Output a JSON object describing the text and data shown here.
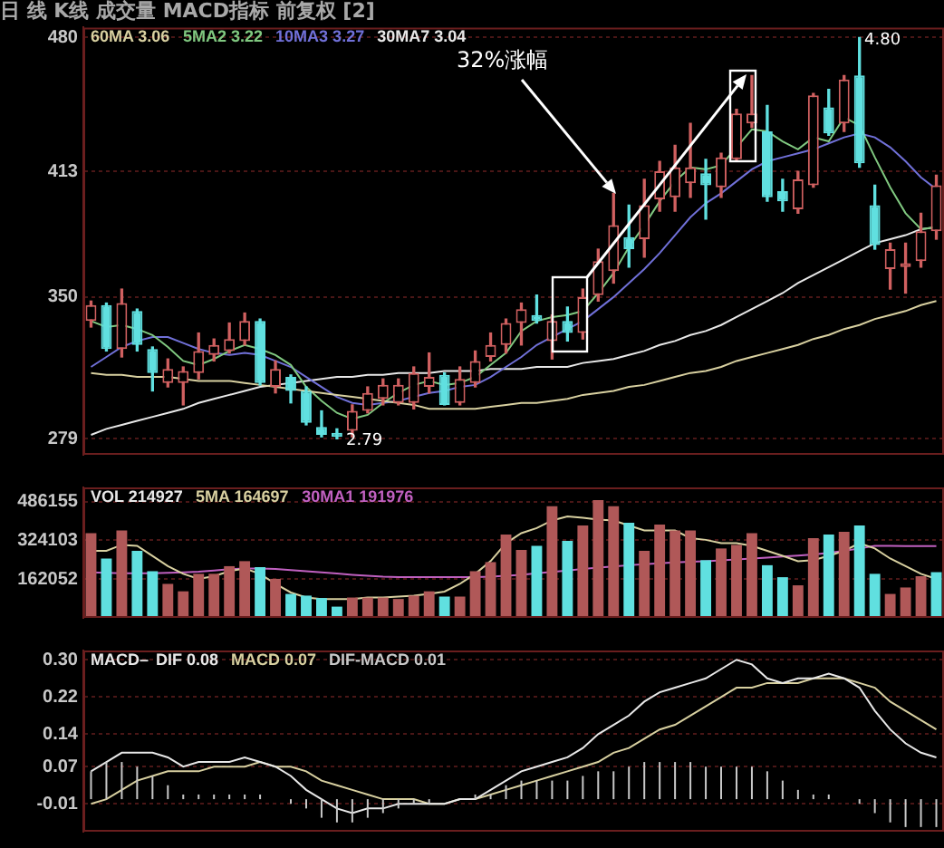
{
  "chart_data": [
    {
      "type": "candlestick",
      "title": "日 线 K线 成交量 MACD指标 前复权 [2]",
      "categories": [
        null,
        null,
        null,
        null,
        null,
        null,
        null,
        null,
        null,
        null,
        null,
        null,
        null,
        null,
        null,
        null,
        null,
        null,
        null,
        null,
        null,
        null,
        null,
        null,
        null,
        null,
        null,
        null,
        null,
        null,
        null,
        null,
        null,
        null,
        null,
        null,
        null,
        null,
        null,
        null,
        null,
        null,
        null,
        null,
        null,
        null,
        null,
        null,
        null,
        null,
        null,
        null,
        null,
        null,
        null,
        null
      ],
      "ohlc": [
        [
          338,
          348,
          335,
          346
        ],
        [
          346,
          347,
          323,
          324
        ],
        [
          324,
          354,
          320,
          347
        ],
        [
          343,
          344,
          323,
          326
        ],
        [
          324,
          325,
          303,
          312
        ],
        [
          307,
          319,
          305,
          314
        ],
        [
          307,
          315,
          296,
          313
        ],
        [
          312,
          332,
          309,
          323
        ],
        [
          321,
          329,
          318,
          326
        ],
        [
          323,
          337,
          322,
          329
        ],
        [
          328,
          342,
          326,
          338
        ],
        [
          338,
          339,
          306,
          307
        ],
        [
          305,
          318,
          302,
          314
        ],
        [
          310,
          311,
          297,
          303
        ],
        [
          303,
          305,
          286,
          287
        ],
        [
          285,
          293,
          280,
          281
        ],
        [
          282,
          284,
          279,
          280
        ],
        [
          283,
          296,
          280,
          293
        ],
        [
          293,
          305,
          292,
          302
        ],
        [
          299,
          309,
          296,
          306
        ],
        [
          297,
          309,
          296,
          306
        ],
        [
          297,
          315,
          294,
          312
        ],
        [
          305,
          322,
          302,
          310
        ],
        [
          311,
          312,
          296,
          296
        ],
        [
          297,
          315,
          296,
          309
        ],
        [
          307,
          323,
          305,
          318
        ],
        [
          320,
          332,
          318,
          326
        ],
        [
          326,
          339,
          322,
          337
        ],
        [
          337,
          347,
          326,
          344
        ],
        [
          341,
          351,
          337,
          338
        ],
        [
          328,
          341,
          319,
          338
        ],
        [
          338,
          345,
          328,
          332
        ],
        [
          332,
          354,
          329,
          350
        ],
        [
          351,
          374,
          348,
          368
        ],
        [
          363,
          402,
          357,
          386
        ],
        [
          380,
          396,
          365,
          374
        ],
        [
          379,
          409,
          370,
          396
        ],
        [
          399,
          418,
          393,
          413
        ],
        [
          400,
          426,
          393,
          415
        ],
        [
          407,
          437,
          400,
          415
        ],
        [
          412,
          419,
          389,
          406
        ],
        [
          405,
          422,
          400,
          420
        ],
        [
          419,
          444,
          418,
          442
        ],
        [
          437,
          461,
          435,
          442
        ],
        [
          433,
          446,
          398,
          400
        ],
        [
          403,
          409,
          393,
          398
        ],
        [
          394,
          413,
          392,
          409
        ],
        [
          406,
          452,
          405,
          451
        ],
        [
          445,
          454,
          431,
          432
        ],
        [
          437,
          461,
          433,
          459
        ],
        [
          461,
          480,
          415,
          417
        ],
        [
          396,
          406,
          374,
          376
        ],
        [
          364,
          377,
          354,
          374
        ],
        [
          365,
          377,
          352,
          367
        ],
        [
          368,
          392,
          365,
          383
        ],
        [
          383,
          411,
          379,
          406
        ]
      ],
      "colors": [
        "#d06060",
        "#60e0e0",
        "#d06060",
        "#60e0e0",
        "#60e0e0",
        "#d06060",
        "#d06060",
        "#d06060",
        "#d06060",
        "#d06060",
        "#d06060",
        "#60e0e0",
        "#d06060",
        "#60e0e0",
        "#60e0e0",
        "#60e0e0",
        "#60e0e0",
        "#d06060",
        "#d06060",
        "#d06060",
        "#d06060",
        "#d06060",
        "#d06060",
        "#60e0e0",
        "#d06060",
        "#d06060",
        "#d06060",
        "#d06060",
        "#d06060",
        "#60e0e0",
        "#d06060",
        "#60e0e0",
        "#d06060",
        "#d06060",
        "#d06060",
        "#60e0e0",
        "#d06060",
        "#d06060",
        "#d06060",
        "#d06060",
        "#60e0e0",
        "#d06060",
        "#d06060",
        "#d06060",
        "#60e0e0",
        "#60e0e0",
        "#d06060",
        "#d06060",
        "#60e0e0",
        "#d06060",
        "#60e0e0",
        "#60e0e0",
        "#d06060",
        "#d06060",
        "#d06060",
        "#d06060"
      ],
      "series": [
        {
          "name": "60MA 3.06",
          "type": "line",
          "color": "#d8d0a0",
          "values": [
            312,
            311,
            311,
            310,
            310,
            310,
            309,
            308,
            308,
            308,
            307,
            306,
            305,
            304,
            303,
            302,
            301,
            300,
            299,
            298,
            297,
            296,
            294,
            294,
            294,
            294,
            295,
            296,
            297,
            297,
            298,
            299,
            301,
            302,
            303,
            305,
            306,
            308,
            310,
            312,
            313,
            315,
            318,
            320,
            322,
            324,
            326,
            329,
            331,
            334,
            336,
            339,
            341,
            343,
            346,
            348
          ]
        },
        {
          "name": "5MA2 3.22",
          "type": "line",
          "color": "#80c880",
          "values": [
            338,
            335,
            336,
            334,
            331,
            325,
            318,
            316,
            319,
            323,
            326,
            324,
            321,
            316,
            305,
            298,
            292,
            289,
            291,
            297,
            302,
            306,
            308,
            306,
            307,
            310,
            316,
            322,
            333,
            338,
            340,
            341,
            343,
            352,
            362,
            375,
            386,
            398,
            408,
            415,
            414,
            416,
            425,
            434,
            433,
            428,
            424,
            430,
            428,
            440,
            436,
            420,
            405,
            392,
            384,
            385
          ]
        },
        {
          "name": "10MA3 3.27",
          "type": "line",
          "color": "#7070d8",
          "values": [
            315,
            320,
            325,
            328,
            330,
            330,
            327,
            324,
            322,
            321,
            322,
            321,
            318,
            315,
            310,
            305,
            300,
            297,
            296,
            297,
            298,
            300,
            302,
            303,
            305,
            306,
            310,
            315,
            320,
            326,
            330,
            334,
            338,
            344,
            350,
            357,
            364,
            372,
            381,
            390,
            397,
            402,
            408,
            414,
            418,
            420,
            422,
            424,
            427,
            430,
            432,
            430,
            425,
            418,
            410,
            404
          ]
        },
        {
          "name": "30MA7 3.04",
          "type": "line",
          "color": "#e8e8e8",
          "values": [
            281,
            284,
            286,
            288,
            290,
            292,
            294,
            297,
            299,
            301,
            303,
            305,
            306,
            307,
            308,
            309,
            310,
            310,
            311,
            311,
            312,
            312,
            312,
            313,
            313,
            313,
            314,
            314,
            314,
            315,
            315,
            315,
            317,
            318,
            319,
            321,
            323,
            326,
            328,
            331,
            333,
            336,
            340,
            344,
            348,
            352,
            357,
            361,
            365,
            369,
            373,
            377,
            379,
            381,
            384,
            385
          ]
        }
      ],
      "ylim": [
        271,
        485
      ],
      "yticks": [
        279,
        350,
        413,
        480
      ],
      "grid": "y",
      "legend": "top left",
      "tick_labels": "y",
      "annotations": [
        "32%涨幅",
        "4.80",
        "2.79"
      ]
    },
    {
      "type": "bar",
      "categories": [
        null,
        null,
        null,
        null,
        null,
        null,
        null,
        null,
        null,
        null,
        null,
        null,
        null,
        null,
        null,
        null,
        null,
        null,
        null,
        null,
        null,
        null,
        null,
        null,
        null,
        null,
        null,
        null,
        null,
        null,
        null,
        null,
        null,
        null,
        null,
        null,
        null,
        null,
        null,
        null,
        null,
        null,
        null,
        null,
        null,
        null,
        null,
        null,
        null,
        null,
        null,
        null,
        null,
        null,
        null,
        null
      ],
      "series": [
        {
          "name": "VOL 214927",
          "type": "bar",
          "color": "#e8e8e8",
          "colors": [
            "#b05858",
            "#60e0e0",
            "#b05858",
            "#60e0e0",
            "#60e0e0",
            "#b05858",
            "#b05858",
            "#b05858",
            "#b05858",
            "#b05858",
            "#b05858",
            "#60e0e0",
            "#b05858",
            "#60e0e0",
            "#60e0e0",
            "#60e0e0",
            "#60e0e0",
            "#b05858",
            "#b05858",
            "#b05858",
            "#b05858",
            "#b05858",
            "#b05858",
            "#60e0e0",
            "#b05858",
            "#b05858",
            "#b05858",
            "#b05858",
            "#b05858",
            "#60e0e0",
            "#b05858",
            "#60e0e0",
            "#b05858",
            "#b05858",
            "#b05858",
            "#60e0e0",
            "#b05858",
            "#b05858",
            "#b05858",
            "#b05858",
            "#60e0e0",
            "#b05858",
            "#b05858",
            "#b05858",
            "#60e0e0",
            "#60e0e0",
            "#b05858",
            "#b05858",
            "#60e0e0",
            "#b05858",
            "#60e0e0",
            "#60e0e0",
            "#b05858",
            "#b05858",
            "#b05858",
            "#60e0e0"
          ],
          "values": [
            354000,
            248000,
            365000,
            280000,
            195000,
            142000,
            111000,
            184000,
            184000,
            216000,
            237000,
            212000,
            163000,
            100000,
            93000,
            83000,
            47000,
            85000,
            85000,
            85000,
            79000,
            93000,
            111000,
            89000,
            89000,
            195000,
            233000,
            348000,
            284000,
            301000,
            466000,
            322000,
            386000,
            492000,
            466000,
            397000,
            280000,
            390000,
            365000,
            365000,
            241000,
            290000,
            305000,
            354000,
            220000,
            170000,
            136000,
            333000,
            348000,
            360000,
            386000,
            184000,
            100000,
            127000,
            174000,
            191000
          ]
        },
        {
          "name": "5MA 164697",
          "type": "line",
          "color": "#d8d0a0",
          "values": [
            280000,
            280000,
            305000,
            301000,
            259000,
            216000,
            184000,
            163000,
            174000,
            195000,
            206000,
            184000,
            142000,
            106000,
            85000,
            79000,
            79000,
            79000,
            85000,
            85000,
            89000,
            93000,
            100000,
            110000,
            142000,
            184000,
            237000,
            312000,
            354000,
            375000,
            407000,
            424000,
            418000,
            411000,
            407000,
            386000,
            365000,
            365000,
            365000,
            333000,
            326000,
            312000,
            312000,
            301000,
            280000,
            259000,
            237000,
            241000,
            259000,
            280000,
            312000,
            290000,
            248000,
            216000,
            184000,
            163000
          ]
        },
        {
          "name": "30MA1 191976",
          "type": "line",
          "color": "#c060c0",
          "values": [
            190000,
            188000,
            186000,
            186000,
            186000,
            188000,
            190000,
            193000,
            198000,
            203000,
            206000,
            206000,
            204000,
            200000,
            195000,
            190000,
            185000,
            180000,
            176000,
            172000,
            170000,
            170000,
            170000,
            170000,
            170000,
            170000,
            172000,
            176000,
            180000,
            186000,
            192000,
            198000,
            204000,
            210000,
            215000,
            220000,
            224000,
            228000,
            232000,
            235000,
            237000,
            240000,
            244000,
            248000,
            252000,
            256000,
            260000,
            265000,
            272000,
            280000,
            290000,
            301000,
            301000,
            300000,
            300000,
            300000
          ]
        }
      ],
      "ylim": [
        0,
        545000
      ],
      "yticks": [
        162052,
        324103,
        486155
      ],
      "grid": "y",
      "legend": "top left",
      "tick_labels": "y"
    },
    {
      "type": "line",
      "legend_title": "MACD–",
      "categories": [
        null,
        null,
        null,
        null,
        null,
        null,
        null,
        null,
        null,
        null,
        null,
        null,
        null,
        null,
        null,
        null,
        null,
        null,
        null,
        null,
        null,
        null,
        null,
        null,
        null,
        null,
        null,
        null,
        null,
        null,
        null,
        null,
        null,
        null,
        null,
        null,
        null,
        null,
        null,
        null,
        null,
        null,
        null,
        null,
        null,
        null,
        null,
        null,
        null,
        null,
        null,
        null,
        null,
        null,
        null,
        null
      ],
      "series": [
        {
          "name": "DIF 0.08",
          "type": "line",
          "color": "#e8e8e8",
          "values": [
            0.06,
            0.08,
            0.1,
            0.1,
            0.1,
            0.09,
            0.07,
            0.08,
            0.08,
            0.08,
            0.09,
            0.08,
            0.07,
            0.05,
            0.02,
            0,
            -0.02,
            -0.03,
            -0.02,
            -0.02,
            -0.01,
            -0.01,
            -0.01,
            -0.01,
            0,
            0,
            0.02,
            0.04,
            0.06,
            0.07,
            0.08,
            0.09,
            0.11,
            0.14,
            0.16,
            0.18,
            0.21,
            0.23,
            0.24,
            0.25,
            0.26,
            0.28,
            0.3,
            0.29,
            0.26,
            0.25,
            0.26,
            0.26,
            0.27,
            0.26,
            0.24,
            0.19,
            0.15,
            0.12,
            0.1,
            0.09
          ]
        },
        {
          "name": "MACD 0.07",
          "type": "line",
          "color": "#d8d0a0",
          "values": [
            -0.01,
            0,
            0.02,
            0.04,
            0.05,
            0.06,
            0.06,
            0.06,
            0.07,
            0.07,
            0.07,
            0.08,
            0.07,
            0.07,
            0.06,
            0.04,
            0.03,
            0.02,
            0.01,
            0,
            0,
            0,
            -0.01,
            -0.01,
            0,
            0,
            0.01,
            0.02,
            0.03,
            0.04,
            0.05,
            0.06,
            0.07,
            0.08,
            0.1,
            0.11,
            0.13,
            0.15,
            0.16,
            0.18,
            0.2,
            0.22,
            0.24,
            0.24,
            0.25,
            0.25,
            0.25,
            0.26,
            0.26,
            0.26,
            0.25,
            0.24,
            0.21,
            0.19,
            0.17,
            0.15
          ]
        },
        {
          "name": "DIF-MACD 0.01",
          "type": "bar",
          "color": "#c8c8c8",
          "values": [
            0.06,
            0.08,
            0.08,
            0.07,
            0.05,
            0.03,
            0.01,
            0.01,
            0.01,
            0.01,
            0.01,
            0.01,
            0,
            -0.01,
            -0.02,
            -0.04,
            -0.05,
            -0.05,
            -0.04,
            -0.03,
            -0.02,
            -0.01,
            -0.01,
            0,
            0,
            0.01,
            0.01,
            0.03,
            0.04,
            0.04,
            0.04,
            0.04,
            0.05,
            0.06,
            0.06,
            0.07,
            0.08,
            0.08,
            0.08,
            0.08,
            0.07,
            0.07,
            0.07,
            0.07,
            0.06,
            0.04,
            0.02,
            0.01,
            0.01,
            0,
            -0.01,
            -0.03,
            -0.05,
            -0.06,
            -0.06,
            -0.06
          ]
        }
      ],
      "ylim": [
        -0.07,
        0.32
      ],
      "yticks": [
        {
          "value": -0.01,
          "label": "-0.01"
        },
        {
          "value": 0.07,
          "label": "0.07"
        },
        {
          "value": 0.14,
          "label": "0.14"
        },
        {
          "value": 0.22,
          "label": "0.22"
        },
        {
          "value": 0.3,
          "label": "0.30"
        }
      ],
      "grid": "y",
      "legend": "top left",
      "tick_labels": "y"
    }
  ]
}
